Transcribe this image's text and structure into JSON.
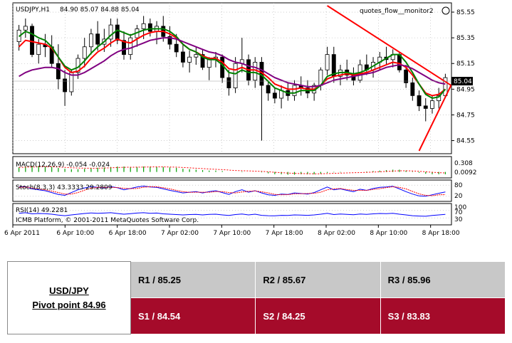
{
  "chart_data": {
    "type": "candlestick",
    "header": {
      "symbol": "USDJPY,H1",
      "ohlc": "84.90 85.07 84.88 85.04",
      "indicator_name": "quotes_flow__monitor2"
    },
    "price_axis": {
      "ticks": [
        "85.55",
        "85.35",
        "85.15",
        "84.95",
        "84.75",
        "84.55"
      ],
      "range": [
        84.47,
        85.6
      ],
      "current_price_label": "85.04",
      "current_price": 85.04
    },
    "time_axis_labels": [
      "6 Apr 2011",
      "6 Apr 10:00",
      "6 Apr 18:00",
      "7 Apr 02:00",
      "7 Apr 10:00",
      "7 Apr 18:00",
      "8 Apr 02:00",
      "8 Apr 10:00",
      "8 Apr 18:00"
    ],
    "candles": [
      [
        85.32,
        85.45,
        85.25,
        85.41
      ],
      [
        85.41,
        85.5,
        85.35,
        85.44
      ],
      [
        85.44,
        85.46,
        85.2,
        85.22
      ],
      [
        85.22,
        85.34,
        85.15,
        85.3
      ],
      [
        85.3,
        85.38,
        85.2,
        85.28
      ],
      [
        85.28,
        85.37,
        85.12,
        85.15
      ],
      [
        85.15,
        85.3,
        84.95,
        85.03
      ],
      [
        85.03,
        85.1,
        84.82,
        84.93
      ],
      [
        84.93,
        85.1,
        84.9,
        85.08
      ],
      [
        85.08,
        85.22,
        85.03,
        85.19
      ],
      [
        85.19,
        85.35,
        85.12,
        85.28
      ],
      [
        85.28,
        85.42,
        85.22,
        85.38
      ],
      [
        85.38,
        85.48,
        85.25,
        85.3
      ],
      [
        85.3,
        85.42,
        85.24,
        85.34
      ],
      [
        85.34,
        85.5,
        85.28,
        85.45
      ],
      [
        85.45,
        85.5,
        85.3,
        85.33
      ],
      [
        85.33,
        85.4,
        85.18,
        85.22
      ],
      [
        85.22,
        85.38,
        85.18,
        85.35
      ],
      [
        85.35,
        85.45,
        85.28,
        85.42
      ],
      [
        85.42,
        85.52,
        85.34,
        85.46
      ],
      [
        85.46,
        85.5,
        85.36,
        85.4
      ],
      [
        85.4,
        85.48,
        85.3,
        85.44
      ],
      [
        85.44,
        85.52,
        85.32,
        85.36
      ],
      [
        85.36,
        85.44,
        85.26,
        85.3
      ],
      [
        85.3,
        85.38,
        85.2,
        85.24
      ],
      [
        85.24,
        85.3,
        85.12,
        85.16
      ],
      [
        85.16,
        85.25,
        85.08,
        85.2
      ],
      [
        85.2,
        85.28,
        85.14,
        85.22
      ],
      [
        85.22,
        85.26,
        85.1,
        85.12
      ],
      [
        85.12,
        85.2,
        85.02,
        85.18
      ],
      [
        85.18,
        85.24,
        85.12,
        85.2
      ],
      [
        85.2,
        85.22,
        85.0,
        85.04
      ],
      [
        85.04,
        85.1,
        84.9,
        84.96
      ],
      [
        84.96,
        85.2,
        84.92,
        85.15
      ],
      [
        85.15,
        85.35,
        85.08,
        85.18
      ],
      [
        85.18,
        85.22,
        84.98,
        85.02
      ],
      [
        85.02,
        85.2,
        84.96,
        85.16
      ],
      [
        85.16,
        85.2,
        84.55,
        84.98
      ],
      [
        84.98,
        85.02,
        84.86,
        84.92
      ],
      [
        84.92,
        84.96,
        84.84,
        84.88
      ],
      [
        84.88,
        84.98,
        84.8,
        84.94
      ],
      [
        84.94,
        85.0,
        84.86,
        84.9
      ],
      [
        84.9,
        85.02,
        84.86,
        84.98
      ],
      [
        84.98,
        85.05,
        84.9,
        84.96
      ],
      [
        84.96,
        85.02,
        84.88,
        84.92
      ],
      [
        84.92,
        85.0,
        84.86,
        84.98
      ],
      [
        84.98,
        85.12,
        84.94,
        85.1
      ],
      [
        85.1,
        85.28,
        85.06,
        85.22
      ],
      [
        85.22,
        85.28,
        85.0,
        85.05
      ],
      [
        85.05,
        85.14,
        84.98,
        85.1
      ],
      [
        85.1,
        85.18,
        85.02,
        85.06
      ],
      [
        85.06,
        85.12,
        84.98,
        85.02
      ],
      [
        85.02,
        85.18,
        85.0,
        85.14
      ],
      [
        85.14,
        85.22,
        85.06,
        85.1
      ],
      [
        85.1,
        85.2,
        85.04,
        85.16
      ],
      [
        85.16,
        85.24,
        85.1,
        85.2
      ],
      [
        85.2,
        85.28,
        85.14,
        85.18
      ],
      [
        85.18,
        85.26,
        85.12,
        85.22
      ],
      [
        85.22,
        85.24,
        85.08,
        85.1
      ],
      [
        85.1,
        85.14,
        84.96,
        85.0
      ],
      [
        85.0,
        85.04,
        84.86,
        84.9
      ],
      [
        84.9,
        84.94,
        84.78,
        84.82
      ],
      [
        84.82,
        84.88,
        84.7,
        84.8
      ],
      [
        84.8,
        84.9,
        84.76,
        84.86
      ],
      [
        84.86,
        84.96,
        84.8,
        84.9
      ],
      [
        84.9,
        85.07,
        84.88,
        85.04
      ]
    ],
    "moving_averages": [
      {
        "color": "#ff0000",
        "values": [
          85.28,
          85.33,
          85.32,
          85.31,
          85.3,
          85.27,
          85.2,
          85.12,
          85.08,
          85.09,
          85.13,
          85.19,
          85.24,
          85.27,
          85.31,
          85.34,
          85.32,
          85.31,
          85.34,
          85.37,
          85.39,
          85.4,
          85.4,
          85.38,
          85.35,
          85.3,
          85.26,
          85.24,
          85.21,
          85.19,
          85.19,
          85.16,
          85.11,
          85.1,
          85.12,
          85.1,
          85.1,
          85.08,
          85.04,
          84.99,
          84.97,
          84.95,
          84.95,
          84.96,
          84.95,
          84.95,
          84.98,
          85.03,
          85.05,
          85.06,
          85.07,
          85.06,
          85.07,
          85.08,
          85.1,
          85.12,
          85.14,
          85.16,
          85.15,
          85.12,
          85.06,
          84.99,
          84.92,
          84.9,
          84.91,
          84.95
        ]
      },
      {
        "color": "#008000",
        "values": [
          85.36,
          85.4,
          85.38,
          85.35,
          85.33,
          85.28,
          85.2,
          85.13,
          85.1,
          85.12,
          85.17,
          85.23,
          85.28,
          85.32,
          85.37,
          85.41,
          85.39,
          85.37,
          85.39,
          85.41,
          85.42,
          85.42,
          85.42,
          85.4,
          85.36,
          85.3,
          85.26,
          85.24,
          85.2,
          85.18,
          85.18,
          85.14,
          85.08,
          85.07,
          85.1,
          85.08,
          85.08,
          85.06,
          85.01,
          84.96,
          84.94,
          84.92,
          84.92,
          84.94,
          84.94,
          84.94,
          84.98,
          85.05,
          85.07,
          85.08,
          85.08,
          85.07,
          85.08,
          85.1,
          85.13,
          85.16,
          85.19,
          85.22,
          85.22,
          85.16,
          85.08,
          84.99,
          84.91,
          84.88,
          84.89,
          84.95
        ]
      },
      {
        "color": "#800080",
        "values": [
          85.05,
          85.08,
          85.1,
          85.11,
          85.12,
          85.12,
          85.11,
          85.08,
          85.06,
          85.06,
          85.08,
          85.11,
          85.14,
          85.17,
          85.21,
          85.24,
          85.26,
          85.27,
          85.29,
          85.31,
          85.33,
          85.34,
          85.35,
          85.35,
          85.34,
          85.32,
          85.3,
          85.28,
          85.26,
          85.24,
          85.23,
          85.21,
          85.18,
          85.16,
          85.15,
          85.13,
          85.12,
          85.1,
          85.07,
          85.04,
          85.02,
          85.0,
          84.99,
          84.98,
          84.97,
          84.97,
          84.98,
          85.0,
          85.02,
          85.03,
          85.04,
          85.05,
          85.06,
          85.07,
          85.08,
          85.1,
          85.12,
          85.13,
          85.14,
          85.13,
          85.11,
          85.08,
          85.05,
          85.02,
          85.0,
          84.99
        ]
      }
    ],
    "macd": {
      "label": "MACD(12,26,9) -0.054 -0.024",
      "ticks": [
        "0.308"
      ],
      "tick_right": "0.0092",
      "histogram": [
        0.1,
        0.12,
        0.13,
        0.13,
        0.12,
        0.11,
        0.09,
        0.07,
        0.06,
        0.06,
        0.07,
        0.08,
        0.09,
        0.1,
        0.11,
        0.12,
        0.12,
        0.11,
        0.11,
        0.12,
        0.12,
        0.12,
        0.11,
        0.1,
        0.09,
        0.07,
        0.06,
        0.05,
        0.04,
        0.03,
        0.03,
        0.02,
        0.0,
        0.0,
        0.01,
        0.0,
        0.0,
        -0.01,
        -0.03,
        -0.05,
        -0.05,
        -0.06,
        -0.06,
        -0.05,
        -0.05,
        -0.05,
        -0.04,
        -0.02,
        -0.01,
        -0.01,
        0.0,
        0.0,
        0.0,
        0.01,
        0.02,
        0.03,
        0.04,
        0.05,
        0.05,
        0.03,
        0.01,
        -0.02,
        -0.04,
        -0.05,
        -0.05,
        -0.05
      ],
      "range": [
        -0.1,
        0.308
      ]
    },
    "stochastic": {
      "label": "Stoch(8,3,3) 43.3333 29.2809",
      "ticks": [
        "80",
        "20"
      ],
      "range": [
        0,
        100
      ],
      "main": [
        70,
        72,
        60,
        55,
        50,
        40,
        30,
        25,
        40,
        55,
        65,
        72,
        68,
        65,
        72,
        66,
        55,
        62,
        70,
        75,
        70,
        68,
        60,
        52,
        45,
        38,
        42,
        45,
        38,
        45,
        50,
        40,
        30,
        45,
        55,
        42,
        50,
        38,
        28,
        25,
        32,
        30,
        38,
        35,
        32,
        40,
        55,
        70,
        55,
        60,
        52,
        45,
        58,
        52,
        62,
        68,
        70,
        74,
        60,
        45,
        32,
        22,
        20,
        28,
        36,
        43
      ],
      "signal": [
        68,
        70,
        65,
        60,
        55,
        48,
        40,
        32,
        32,
        40,
        53,
        64,
        68,
        68,
        68,
        67,
        63,
        61,
        62,
        69,
        72,
        71,
        66,
        60,
        52,
        45,
        41,
        42,
        42,
        42,
        45,
        45,
        40,
        38,
        43,
        47,
        49,
        44,
        38,
        30,
        28,
        29,
        33,
        34,
        35,
        36,
        42,
        55,
        60,
        62,
        56,
        52,
        52,
        52,
        57,
        61,
        67,
        71,
        68,
        60,
        46,
        33,
        25,
        23,
        28,
        29
      ]
    },
    "rsi": {
      "label": "RSI(14) 49.2281",
      "ticks": [
        "100",
        "70",
        "30"
      ],
      "range": [
        0,
        100
      ],
      "values": [
        55,
        58,
        52,
        54,
        53,
        50,
        45,
        42,
        46,
        50,
        54,
        57,
        55,
        56,
        58,
        54,
        50,
        53,
        56,
        58,
        55,
        56,
        52,
        50,
        48,
        46,
        48,
        49,
        46,
        49,
        50,
        46,
        43,
        48,
        51,
        46,
        50,
        44,
        42,
        41,
        44,
        43,
        46,
        45,
        44,
        46,
        50,
        55,
        48,
        51,
        49,
        47,
        51,
        49,
        52,
        54,
        53,
        55,
        50,
        46,
        42,
        40,
        39,
        43,
        46,
        49
      ]
    },
    "footer_text": "ICMB Platform, © 2001-2011 MetaQuotes Software Corp."
  },
  "pivot_table": {
    "pair": "USD/JPY",
    "pivot_label": "Pivot point 84.96",
    "resistance": [
      "R1 / 85.25",
      "R2 / 85.67",
      "R3 / 85.96"
    ],
    "support": [
      "S1 / 84.54",
      "S2 / 84.25",
      "S3 / 83.83"
    ]
  },
  "colors": {
    "bullish_candle": "#ffffff",
    "bearish_candle": "#000000",
    "trendline": "#ff0000",
    "macd_histogram": "#00a000",
    "macd_signal": "#ff0000",
    "stoch_main": "#0000ff",
    "stoch_signal": "#ff0000",
    "rsi_line": "#0000ff",
    "support_fill": "#a50b2a",
    "resistance_fill": "#c8c8c8"
  }
}
